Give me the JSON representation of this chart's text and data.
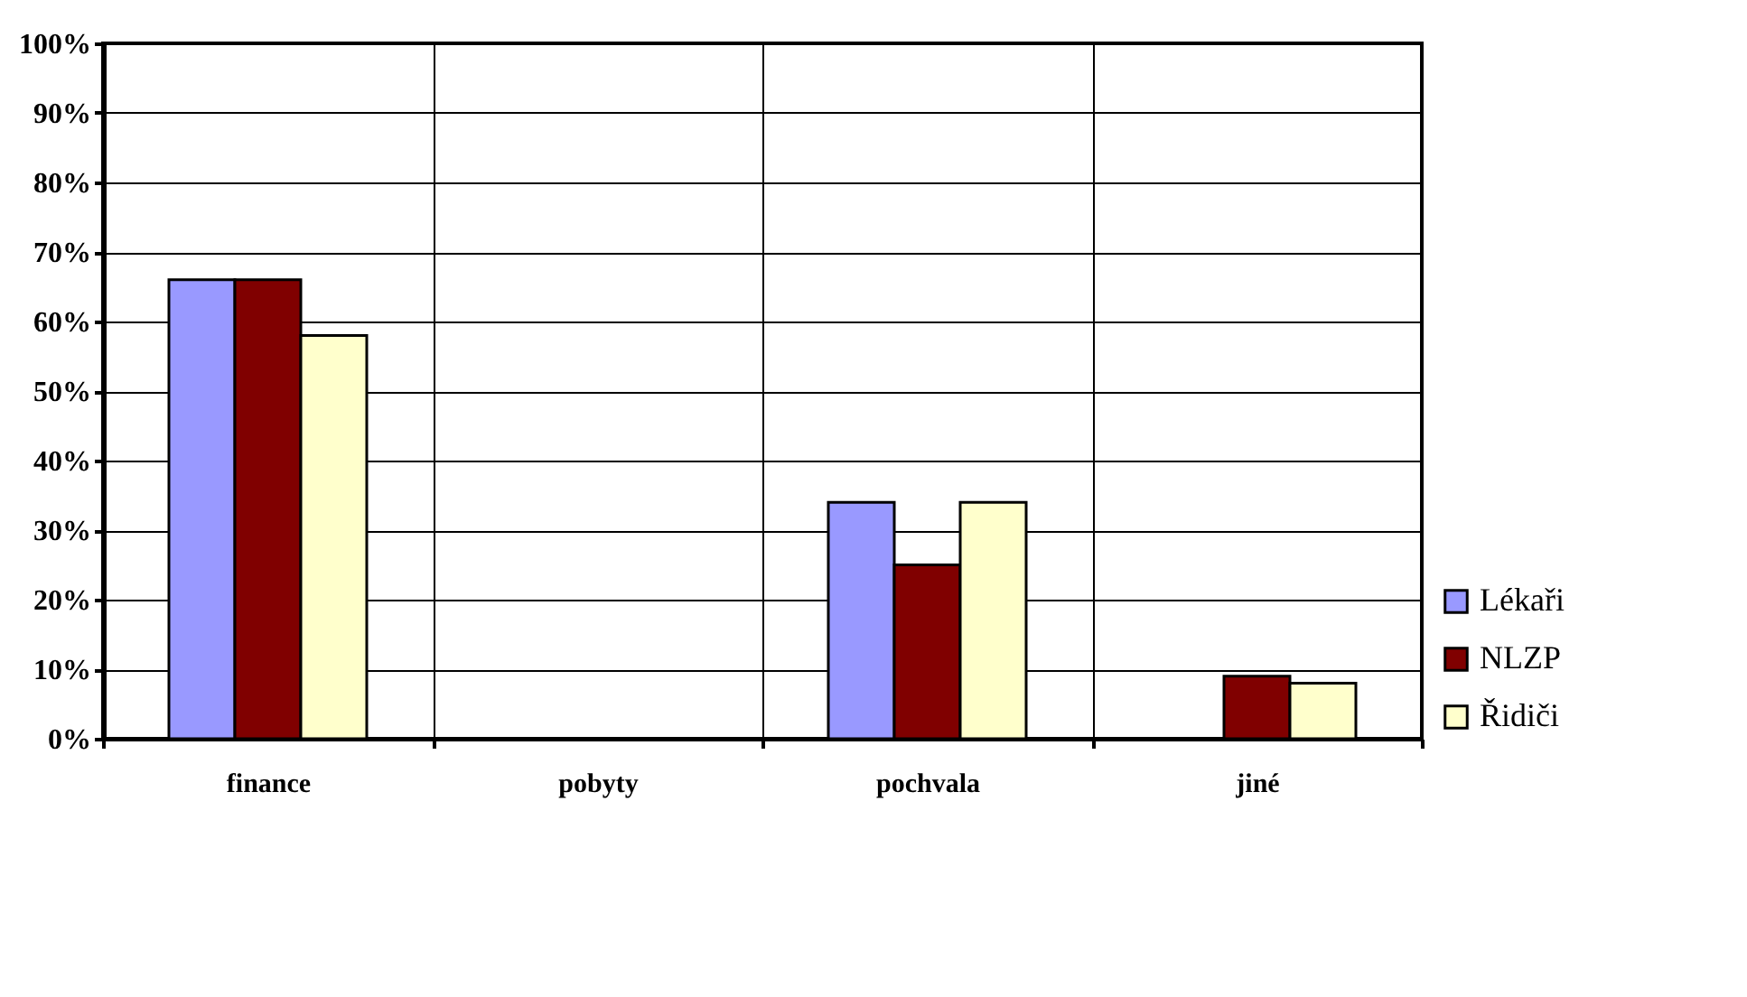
{
  "chart_data": {
    "type": "bar",
    "categories": [
      "finance",
      "pobyty",
      "pochvala",
      "jiné"
    ],
    "series": [
      {
        "name": "Lékaři",
        "color": "#9999ff",
        "values": [
          66,
          0,
          34,
          0
        ]
      },
      {
        "name": "NLZP",
        "color": "#800000",
        "values": [
          66,
          0,
          25,
          9
        ]
      },
      {
        "name": "Řidiči",
        "color": "#ffffcc",
        "values": [
          58,
          0,
          34,
          8
        ]
      }
    ],
    "ylim": [
      0,
      100
    ],
    "yticks": [
      {
        "value": 0,
        "label": "0%"
      },
      {
        "value": 10,
        "label": "10%"
      },
      {
        "value": 20,
        "label": "20%"
      },
      {
        "value": 30,
        "label": "30%"
      },
      {
        "value": 40,
        "label": "40%"
      },
      {
        "value": 50,
        "label": "50%"
      },
      {
        "value": 60,
        "label": "60%"
      },
      {
        "value": 70,
        "label": "70%"
      },
      {
        "value": 80,
        "label": "80%"
      },
      {
        "value": 90,
        "label": "90%"
      },
      {
        "value": 100,
        "label": "100%"
      }
    ],
    "grid": true,
    "legend": "right"
  }
}
